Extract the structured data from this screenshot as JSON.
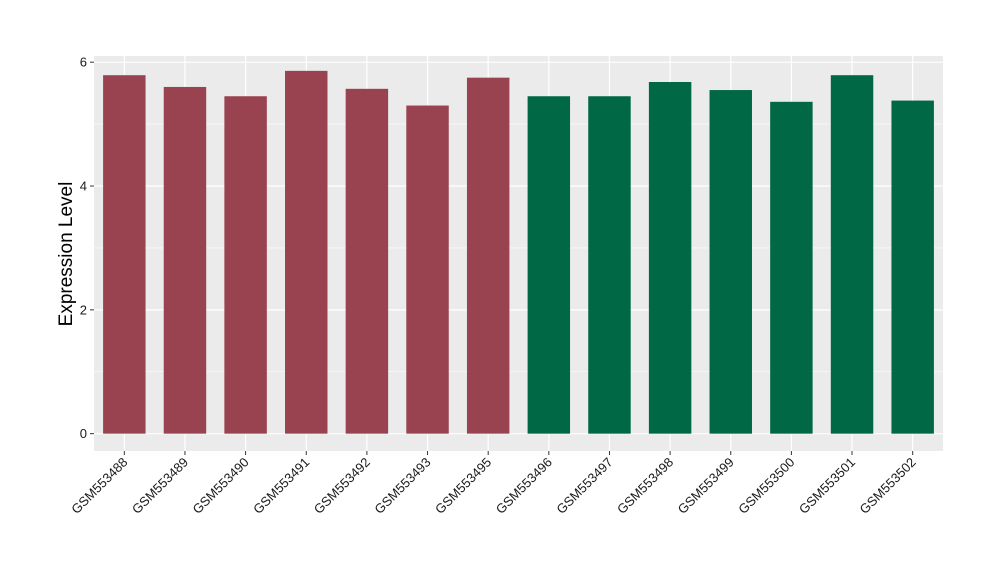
{
  "chart_data": {
    "type": "bar",
    "title": "",
    "xlabel": "",
    "ylabel": "Expression Level",
    "ylim": [
      -0.28,
      6.1
    ],
    "yticks": [
      0,
      2,
      4,
      6
    ],
    "grid": true,
    "legend": "none",
    "categories": [
      "GSM553488",
      "GSM553489",
      "GSM553490",
      "GSM553491",
      "GSM553492",
      "GSM553493",
      "GSM553495",
      "GSM553496",
      "GSM553497",
      "GSM553498",
      "GSM553499",
      "GSM553500",
      "GSM553501",
      "GSM553502"
    ],
    "values": [
      5.79,
      5.6,
      5.45,
      5.86,
      5.57,
      5.3,
      5.75,
      5.45,
      5.45,
      5.68,
      5.55,
      5.36,
      5.79,
      5.38
    ],
    "bar_colors": [
      "#9a4350",
      "#9a4350",
      "#9a4350",
      "#9a4350",
      "#9a4350",
      "#9a4350",
      "#9a4350",
      "#006845",
      "#006845",
      "#006845",
      "#006845",
      "#006845",
      "#006845",
      "#006845"
    ],
    "panel_background": "#ebebeb",
    "grid_color": "#ffffff"
  }
}
